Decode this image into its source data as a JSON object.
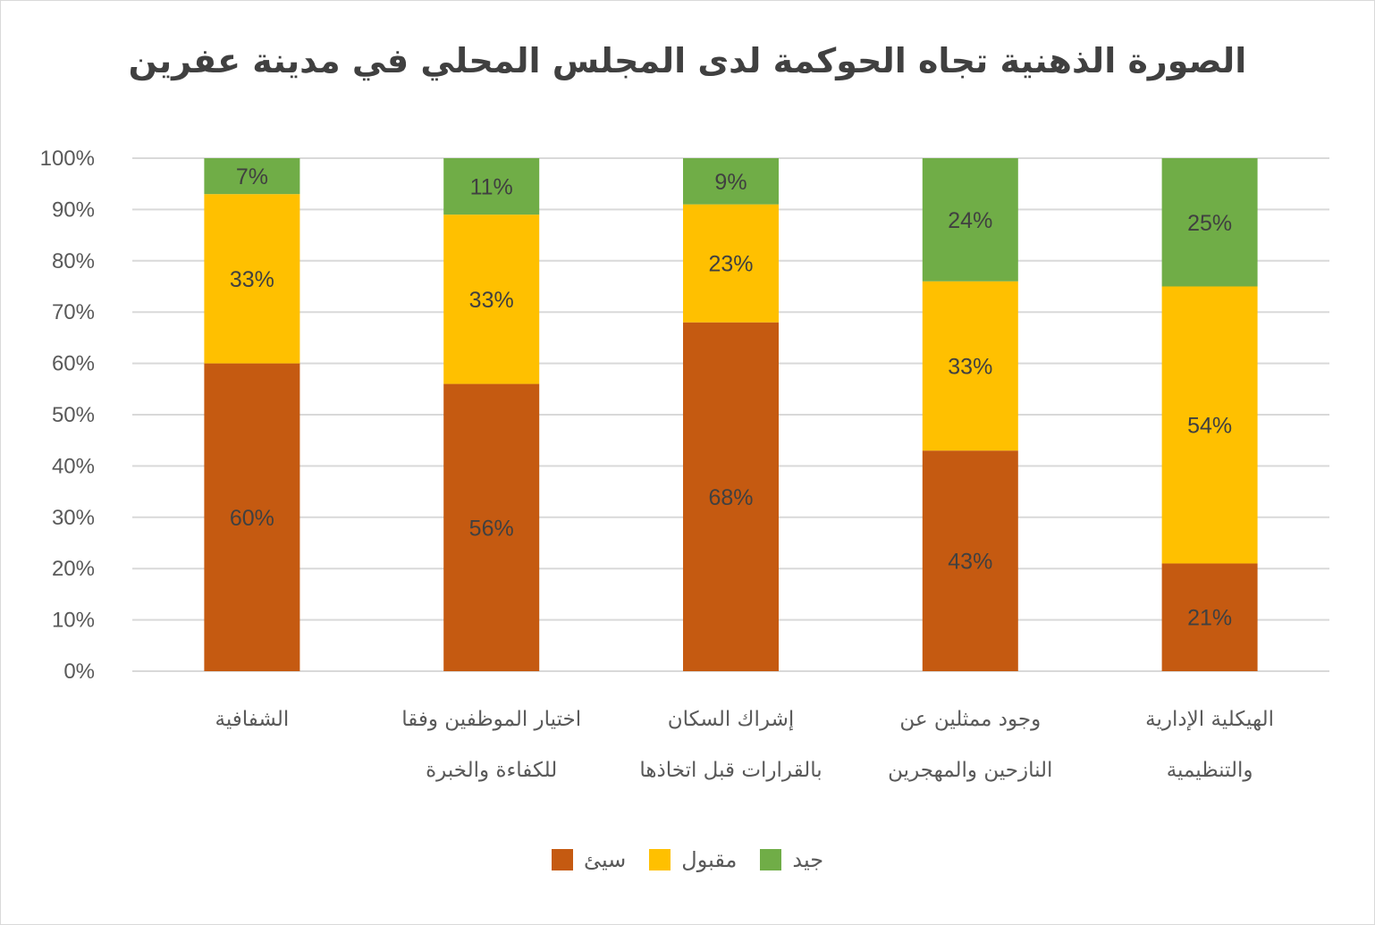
{
  "chart_data": {
    "type": "bar",
    "stacked": "percent",
    "title": "الصورة الذهنية تجاه الحوكمة لدى المجلس المحلي في مدينة عفرين",
    "categories": [
      [
        "الشفافية"
      ],
      [
        "اختيار الموظفين وفقا",
        "للكفاءة والخبرة"
      ],
      [
        "إشراك السكان",
        "بالقرارات قبل اتخاذها"
      ],
      [
        "وجود ممثلين عن",
        "النازحين والمهجرين"
      ],
      [
        "الهيكلية الإدارية",
        "والتنظيمية"
      ]
    ],
    "series": [
      {
        "name": "سيئ",
        "color": "#c55a11",
        "values": [
          60,
          56,
          68,
          43,
          21
        ],
        "labels": [
          "60%",
          "56%",
          "68%",
          "43%",
          "21%"
        ]
      },
      {
        "name": "مقبول",
        "color": "#ffc000",
        "values": [
          33,
          33,
          23,
          33,
          54
        ],
        "labels": [
          "33%",
          "33%",
          "23%",
          "33%",
          "54%"
        ]
      },
      {
        "name": "جيد",
        "color": "#70ad47",
        "values": [
          7,
          11,
          9,
          24,
          25
        ],
        "labels": [
          "7%",
          "11%",
          "9%",
          "24%",
          "25%"
        ]
      }
    ],
    "ylim": [
      0,
      100
    ],
    "yticks": [
      "0%",
      "10%",
      "20%",
      "30%",
      "40%",
      "50%",
      "60%",
      "70%",
      "80%",
      "90%",
      "100%"
    ],
    "grid": true,
    "legend_position": "bottom",
    "legend_order": [
      "جيد",
      "مقبول",
      "سيئ"
    ]
  }
}
